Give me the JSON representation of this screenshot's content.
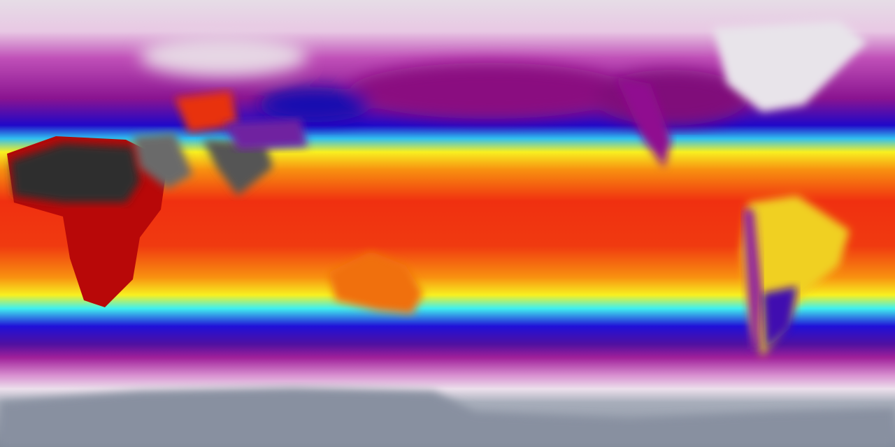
{
  "map": {
    "projection": "equirectangular",
    "type": "global temperature field",
    "colors": {
      "polar_cold": "#8c96a4",
      "very_cold": "#e8d8e6",
      "cold": "#a0209a",
      "cool": "#2010d0",
      "mild": "#40f0f0",
      "warm": "#f8f020",
      "hot": "#f03010",
      "very_hot": "#c00000",
      "extreme": "#303030"
    }
  }
}
